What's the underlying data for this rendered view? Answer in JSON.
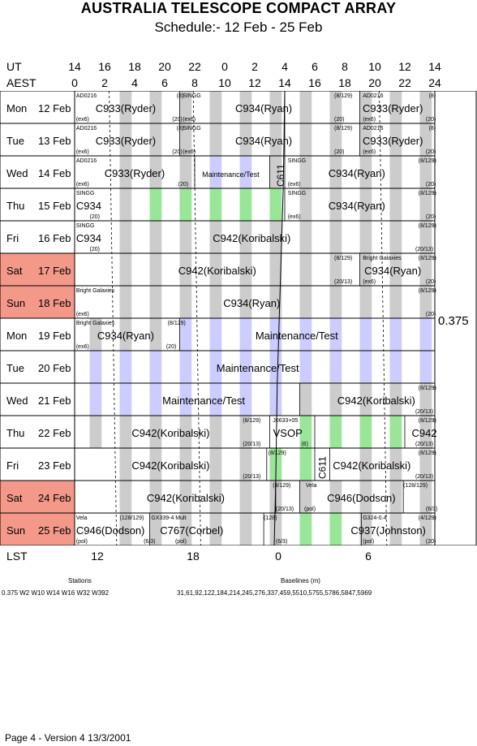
{
  "header": {
    "title": "AUSTRALIA TELESCOPE COMPACT ARRAY",
    "subtitle": "Schedule:- 12 Feb - 25 Feb"
  },
  "axes": {
    "ut_label": "UT",
    "aest_label": "AEST",
    "lst_label": "LST",
    "ut_ticks": [
      "14",
      "16",
      "18",
      "20",
      "22",
      "0",
      "2",
      "4",
      "6",
      "8",
      "10",
      "12",
      "14"
    ],
    "aest_ticks": [
      "0",
      "2",
      "4",
      "6",
      "8",
      "10",
      "12",
      "14",
      "16",
      "18",
      "20",
      "22",
      "24"
    ],
    "lst_ticks": [
      "12",
      "18",
      "0",
      "6"
    ]
  },
  "colors": {
    "weekend": "#f4998a",
    "gray_band": "#cccccc",
    "maintenance_band": "#ccccff",
    "green_band": "#99e699"
  },
  "days": [
    {
      "dow": "Mon",
      "date": "12 Feb",
      "weekend": false,
      "codes": [
        "AD0216",
        "(8)",
        "SINGG",
        "(8/129)",
        "AD0216",
        "(8)",
        "(ex6)",
        "(20)",
        "(ex6)",
        "(20)",
        "(ex6)",
        "(20)"
      ],
      "projects": [
        "C933(Ryder)",
        "C934(Ryan)",
        "C933(Ryder)"
      ]
    },
    {
      "dow": "Tue",
      "date": "13 Feb",
      "weekend": false,
      "codes": [
        "AD0216",
        "(8)",
        "SINGG",
        "(8/129)",
        "AD0216",
        "(8)",
        "(ex6)",
        "(20)",
        "(ex6)",
        "(20)",
        "(ex6)",
        "(20)"
      ],
      "projects": [
        "C933(Ryder)",
        "C934(Ryan)",
        "C933(Ryder)"
      ]
    },
    {
      "dow": "Wed",
      "date": "14 Feb",
      "weekend": false,
      "codes": [
        "AD0216",
        "SINGG",
        "(8/129)",
        "(ex6)",
        "(20)",
        "(ex6)",
        "(20)"
      ],
      "projects": [
        "C933(Ryder)",
        "Maintenance/Test",
        "C611",
        "C934(Ryan)"
      ]
    },
    {
      "dow": "Thu",
      "date": "15 Feb",
      "weekend": false,
      "codes": [
        "SINGG",
        "SINGG",
        "(8/129)",
        "(20)",
        "(ex6)",
        "(20)"
      ],
      "projects": [
        "C934",
        "C934(Ryan)"
      ]
    },
    {
      "dow": "Fri",
      "date": "16 Feb",
      "weekend": false,
      "codes": [
        "SINGG",
        "(8/129)",
        "(20)",
        "(20/13)"
      ],
      "projects": [
        "C934",
        "C942(Koribalski)"
      ]
    },
    {
      "dow": "Sat",
      "date": "17 Feb",
      "weekend": true,
      "codes": [
        "(8/129)",
        "Bright Galaxies",
        "(8/129)",
        "(20/13)",
        "(ex6)",
        "(20)"
      ],
      "projects": [
        "C942(Koribalski)",
        "C934(Ryan)"
      ]
    },
    {
      "dow": "Sun",
      "date": "18 Feb",
      "weekend": true,
      "codes": [
        "Bright Galaxies",
        "(8/129)",
        "(ex6)",
        "(20)"
      ],
      "projects": [
        "C934(Ryan)"
      ]
    },
    {
      "dow": "Mon",
      "date": "19 Feb",
      "weekend": false,
      "codes": [
        "Bright Galaxies",
        "(8/129)",
        "(ex6)",
        "(20)"
      ],
      "projects": [
        "C934(Ryan)",
        "Maintenance/Test"
      ]
    },
    {
      "dow": "Tue",
      "date": "20 Feb",
      "weekend": false,
      "codes": [],
      "projects": [
        "Maintenance/Test"
      ]
    },
    {
      "dow": "Wed",
      "date": "21 Feb",
      "weekend": false,
      "codes": [
        "(8/129)",
        "(20/13)"
      ],
      "projects": [
        "Maintenance/Test",
        "C942(Koribalski)"
      ]
    },
    {
      "dow": "Thu",
      "date": "22 Feb",
      "weekend": false,
      "codes": [
        "(8/129)",
        "J0633+05",
        "(8/129)",
        "(20/13)",
        "(6)",
        "(20/13)"
      ],
      "projects": [
        "C942(Koribalski)",
        "VSOP",
        "C942"
      ]
    },
    {
      "dow": "Fri",
      "date": "23 Feb",
      "weekend": false,
      "codes": [
        "(8/129)",
        "(8/129)",
        "(20/13)",
        "(20/13)"
      ],
      "projects": [
        "C942(Koribalski)",
        "C611",
        "C942(Koribalski)"
      ]
    },
    {
      "dow": "Sat",
      "date": "24 Feb",
      "weekend": true,
      "codes": [
        "(8/129)",
        "Vela",
        "(128/129)",
        "(20/13)",
        "(pol)",
        "(6/3)"
      ],
      "projects": [
        "C942(Koribalski)",
        "C946(Dodson)"
      ]
    },
    {
      "dow": "Sun",
      "date": "25 Feb",
      "weekend": true,
      "codes": [
        "Vela",
        "(128/129)",
        "GX339-4 Mult",
        "(128)",
        "G324-0.4",
        "(4/129)",
        "(pol)",
        "(6/3)",
        "(pol)",
        "(6/3)",
        "(pol)",
        "(20)"
      ],
      "projects": [
        "C946(Dodson)",
        "C767(Corbel)",
        "C937(Johnston)"
      ]
    }
  ],
  "config_label": "0.375",
  "stations": {
    "title": "Stations",
    "value": "0.375  W2 W10 W14 W16 W32 W392"
  },
  "baselines": {
    "title": "Baselines (m)",
    "value": "31,61,92,122,184,214,245,276,337,459,5510,5755,5786,5847,5969"
  },
  "footer": "Page 4 - Version 4  13/3/2001"
}
